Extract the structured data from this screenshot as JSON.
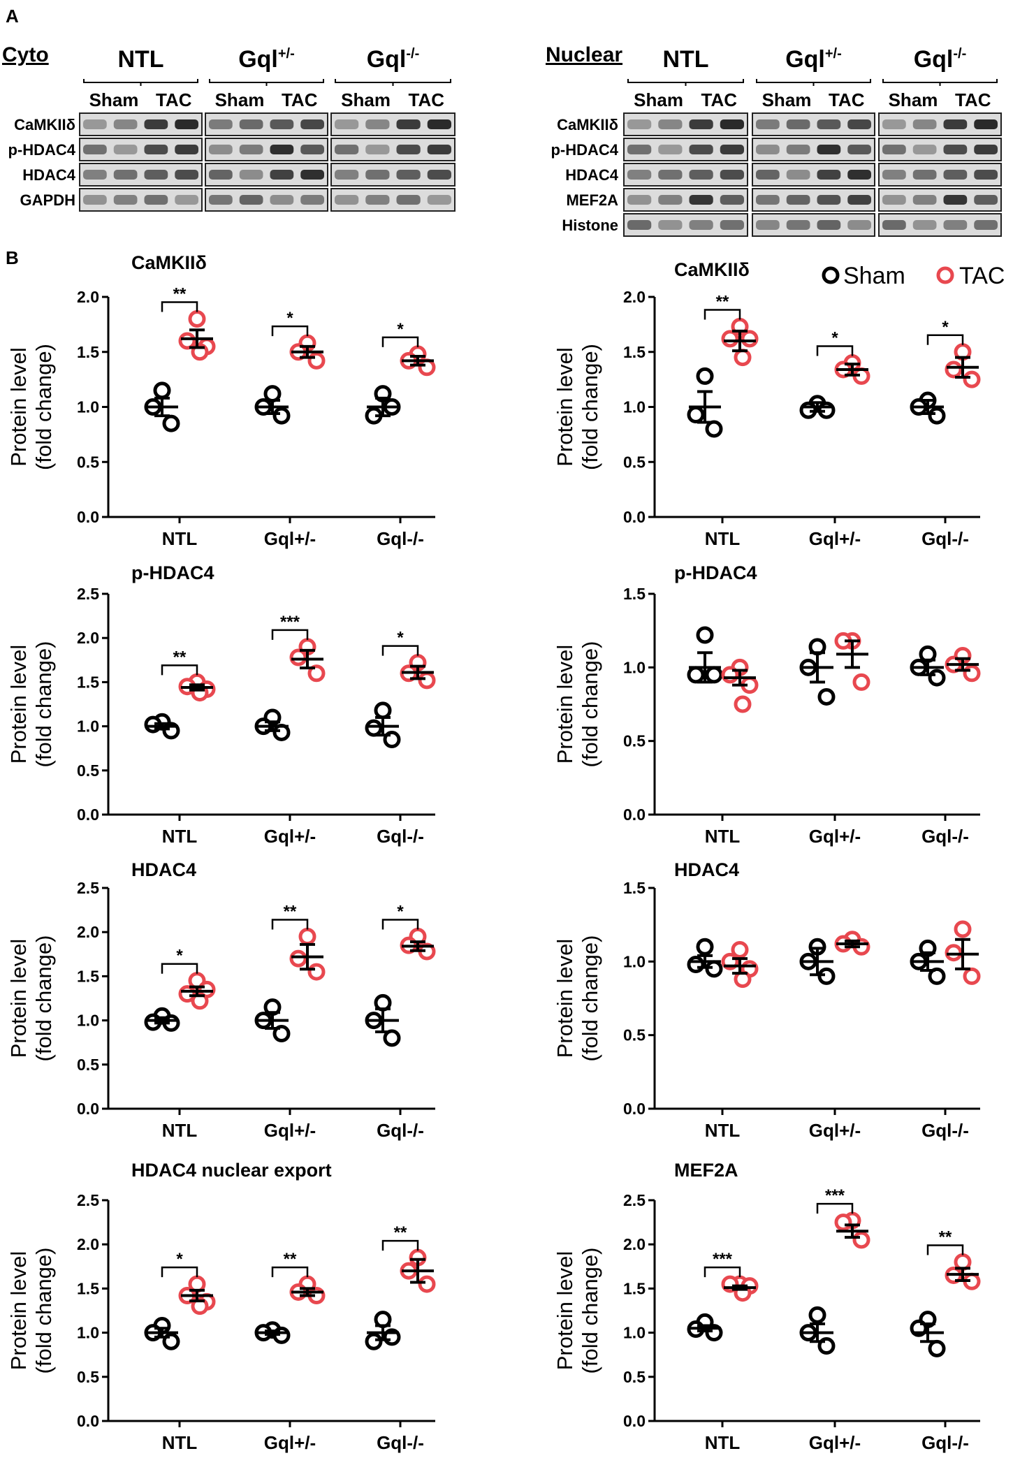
{
  "panel_labels": {
    "a": "A",
    "b": "B"
  },
  "colors": {
    "sham": "#000000",
    "tac": "#e8484f"
  },
  "blots": {
    "cyto": {
      "section_title": "Cyto",
      "groups": [
        {
          "name": "NTL",
          "sup": ""
        },
        {
          "name": "Gql",
          "sup": "+/-"
        },
        {
          "name": "Gql",
          "sup": "-/-"
        }
      ],
      "conditions": [
        "Sham",
        "TAC"
      ],
      "rows": [
        "CaMKIIδ",
        "p-HDAC4",
        "HDAC4",
        "GAPDH"
      ]
    },
    "nuclear": {
      "section_title": "Nuclear",
      "groups": [
        {
          "name": "NTL",
          "sup": ""
        },
        {
          "name": "Gql",
          "sup": "+/-"
        },
        {
          "name": "Gql",
          "sup": "-/-"
        }
      ],
      "conditions": [
        "Sham",
        "TAC"
      ],
      "rows": [
        "CaMKIIδ",
        "p-HDAC4",
        "HDAC4",
        "MEF2A",
        "Histone"
      ]
    }
  },
  "legend": {
    "sham": "Sham",
    "tac": "TAC"
  },
  "chart_data": [
    {
      "type": "scatter",
      "title": "CaMKIIδ",
      "ylabel": [
        "Protein level",
        "(fold change)"
      ],
      "ylim": [
        0,
        2.0
      ],
      "yticks": [
        "0.0",
        "0.5",
        "1.0",
        "1.5",
        "2.0"
      ],
      "categories": [
        "NTL",
        "Gql+/-",
        "Gql-/-"
      ],
      "series": [
        {
          "name": "Sham",
          "groups": [
            [
              1.15,
              1.0,
              0.85
            ],
            [
              1.12,
              1.0,
              0.92
            ],
            [
              1.12,
              0.92,
              1.0
            ]
          ],
          "mean": [
            1.0,
            1.0,
            1.0
          ],
          "sem": [
            0.08,
            0.06,
            0.08
          ]
        },
        {
          "name": "TAC",
          "groups": [
            [
              1.8,
              1.6,
              1.55,
              1.5
            ],
            [
              1.58,
              1.5,
              1.42
            ],
            [
              1.48,
              1.42,
              1.36
            ]
          ],
          "mean": [
            1.62,
            1.5,
            1.42
          ],
          "sem": [
            0.08,
            0.05,
            0.04
          ]
        }
      ],
      "significance": [
        "**",
        "*",
        "*"
      ]
    },
    {
      "type": "scatter",
      "title": "CaMKIIδ",
      "ylabel": [
        "Protein level",
        "(fold change)"
      ],
      "ylim": [
        0,
        2.0
      ],
      "yticks": [
        "0.0",
        "0.5",
        "1.0",
        "1.5",
        "2.0"
      ],
      "categories": [
        "NTL",
        "Gql+/-",
        "Gql-/-"
      ],
      "series": [
        {
          "name": "Sham",
          "groups": [
            [
              1.28,
              0.93,
              0.8
            ],
            [
              1.03,
              0.97,
              0.97
            ],
            [
              1.06,
              1.0,
              0.92
            ]
          ],
          "mean": [
            1.0,
            1.0,
            1.0
          ],
          "sem": [
            0.14,
            0.04,
            0.06
          ]
        },
        {
          "name": "TAC",
          "groups": [
            [
              1.73,
              1.62,
              1.62,
              1.45
            ],
            [
              1.4,
              1.34,
              1.28
            ],
            [
              1.5,
              1.34,
              1.25
            ]
          ],
          "mean": [
            1.6,
            1.34,
            1.36
          ],
          "sem": [
            0.09,
            0.05,
            0.09
          ]
        }
      ],
      "significance": [
        "**",
        "*",
        "*"
      ]
    },
    {
      "type": "scatter",
      "title": "p-HDAC4",
      "ylabel": [
        "Protein level",
        "(fold change)"
      ],
      "ylim": [
        0,
        2.5
      ],
      "yticks": [
        "0.0",
        "0.5",
        "1.0",
        "1.5",
        "2.0",
        "2.5"
      ],
      "categories": [
        "NTL",
        "Gql+/-",
        "Gql-/-"
      ],
      "series": [
        {
          "name": "Sham",
          "groups": [
            [
              1.05,
              1.02,
              0.95
            ],
            [
              1.1,
              1.0,
              0.93
            ],
            [
              1.18,
              0.98,
              0.85
            ]
          ],
          "mean": [
            1.0,
            1.0,
            1.0
          ],
          "sem": [
            0.03,
            0.05,
            0.1
          ]
        },
        {
          "name": "TAC",
          "groups": [
            [
              1.5,
              1.45,
              1.42,
              1.38
            ],
            [
              1.9,
              1.78,
              1.6
            ],
            [
              1.72,
              1.6,
              1.52
            ]
          ],
          "mean": [
            1.44,
            1.76,
            1.61
          ],
          "sem": [
            0.03,
            0.1,
            0.07
          ]
        }
      ],
      "significance": [
        "**",
        "***",
        "*"
      ]
    },
    {
      "type": "scatter",
      "title": "p-HDAC4",
      "ylabel": [
        "Protein level",
        "(fold change)"
      ],
      "ylim": [
        0,
        1.5
      ],
      "yticks": [
        "0.0",
        "0.5",
        "1.0",
        "1.5"
      ],
      "categories": [
        "NTL",
        "Gql+/-",
        "Gql-/-"
      ],
      "series": [
        {
          "name": "Sham",
          "groups": [
            [
              1.22,
              0.95,
              0.95
            ],
            [
              1.14,
              1.0,
              0.8
            ],
            [
              1.09,
              1.0,
              0.93
            ]
          ],
          "mean": [
            1.0,
            1.0,
            1.0
          ],
          "sem": [
            0.1,
            0.1,
            0.05
          ]
        },
        {
          "name": "TAC",
          "groups": [
            [
              1.0,
              0.95,
              0.88,
              0.75
            ],
            [
              1.18,
              1.18,
              0.9
            ],
            [
              1.08,
              1.02,
              0.96
            ]
          ],
          "mean": [
            0.93,
            1.09,
            1.02
          ],
          "sem": [
            0.05,
            0.09,
            0.04
          ]
        }
      ],
      "significance": [
        "",
        "",
        ""
      ]
    },
    {
      "type": "scatter",
      "title": "HDAC4",
      "ylabel": [
        "Protein level",
        "(fold change)"
      ],
      "ylim": [
        0,
        2.5
      ],
      "yticks": [
        "0.0",
        "0.5",
        "1.0",
        "1.5",
        "2.0",
        "2.5"
      ],
      "categories": [
        "NTL",
        "Gql+/-",
        "Gql-/-"
      ],
      "series": [
        {
          "name": "Sham",
          "groups": [
            [
              1.05,
              0.98,
              0.97
            ],
            [
              1.15,
              1.0,
              0.85
            ],
            [
              1.2,
              1.0,
              0.8
            ]
          ],
          "mean": [
            1.0,
            1.0,
            1.0
          ],
          "sem": [
            0.03,
            0.09,
            0.13
          ]
        },
        {
          "name": "TAC",
          "groups": [
            [
              1.45,
              1.3,
              1.35,
              1.22
            ],
            [
              1.95,
              1.7,
              1.55
            ],
            [
              1.95,
              1.85,
              1.78
            ]
          ],
          "mean": [
            1.33,
            1.72,
            1.84
          ],
          "sem": [
            0.05,
            0.14,
            0.05
          ]
        }
      ],
      "significance": [
        "*",
        "**",
        "*"
      ]
    },
    {
      "type": "scatter",
      "title": "HDAC4",
      "ylabel": [
        "Protein level",
        "(fold change)"
      ],
      "ylim": [
        0,
        1.5
      ],
      "yticks": [
        "0.0",
        "0.5",
        "1.0",
        "1.5"
      ],
      "categories": [
        "NTL",
        "Gql+/-",
        "Gql-/-"
      ],
      "series": [
        {
          "name": "Sham",
          "groups": [
            [
              1.1,
              0.98,
              0.95
            ],
            [
              1.1,
              1.0,
              0.9
            ],
            [
              1.09,
              1.0,
              0.9
            ]
          ],
          "mean": [
            1.0,
            1.0,
            1.0
          ],
          "sem": [
            0.04,
            0.09,
            0.06
          ]
        },
        {
          "name": "TAC",
          "groups": [
            [
              1.08,
              1.0,
              0.95,
              0.88
            ],
            [
              1.15,
              1.12,
              1.1
            ],
            [
              1.22,
              1.06,
              0.9
            ]
          ],
          "mean": [
            0.97,
            1.12,
            1.05
          ],
          "sem": [
            0.05,
            0.02,
            0.1
          ]
        }
      ],
      "significance": [
        "",
        "",
        ""
      ]
    },
    {
      "type": "scatter",
      "title": "HDAC4 nuclear export",
      "ylabel": [
        "Protein level",
        "(fold change)"
      ],
      "ylim": [
        0,
        2.5
      ],
      "yticks": [
        "0.0",
        "0.5",
        "1.0",
        "1.5",
        "2.0",
        "2.5"
      ],
      "categories": [
        "NTL",
        "Gql+/-",
        "Gql-/-"
      ],
      "series": [
        {
          "name": "Sham",
          "groups": [
            [
              1.08,
              1.0,
              0.9
            ],
            [
              1.03,
              1.0,
              0.97
            ],
            [
              1.15,
              0.9,
              0.95
            ]
          ],
          "mean": [
            1.0,
            1.0,
            1.0
          ],
          "sem": [
            0.05,
            0.02,
            0.08
          ]
        },
        {
          "name": "TAC",
          "groups": [
            [
              1.55,
              1.42,
              1.35,
              1.3
            ],
            [
              1.55,
              1.46,
              1.42
            ],
            [
              1.85,
              1.7,
              1.55
            ]
          ],
          "mean": [
            1.42,
            1.46,
            1.7
          ],
          "sem": [
            0.06,
            0.04,
            0.13
          ]
        }
      ],
      "significance": [
        "*",
        "**",
        "**"
      ]
    },
    {
      "type": "scatter",
      "title": "MEF2A",
      "ylabel": [
        "Protein level",
        "(fold change)"
      ],
      "ylim": [
        0,
        2.5
      ],
      "yticks": [
        "0.0",
        "0.5",
        "1.0",
        "1.5",
        "2.0",
        "2.5"
      ],
      "categories": [
        "NTL",
        "Gql+/-",
        "Gql-/-"
      ],
      "series": [
        {
          "name": "Sham",
          "groups": [
            [
              1.12,
              1.04,
              1.0
            ],
            [
              1.2,
              1.0,
              0.85
            ],
            [
              1.15,
              1.05,
              0.82
            ]
          ],
          "mean": [
            1.05,
            1.0,
            1.0
          ],
          "sem": [
            0.03,
            0.1,
            0.1
          ]
        },
        {
          "name": "TAC",
          "groups": [
            [
              1.55,
              1.55,
              1.53,
              1.45
            ],
            [
              2.27,
              2.25,
              2.05
            ],
            [
              1.8,
              1.65,
              1.58
            ]
          ],
          "mean": [
            1.51,
            2.15,
            1.66
          ],
          "sem": [
            0.02,
            0.07,
            0.07
          ]
        }
      ],
      "significance": [
        "***",
        "***",
        "**"
      ]
    }
  ]
}
